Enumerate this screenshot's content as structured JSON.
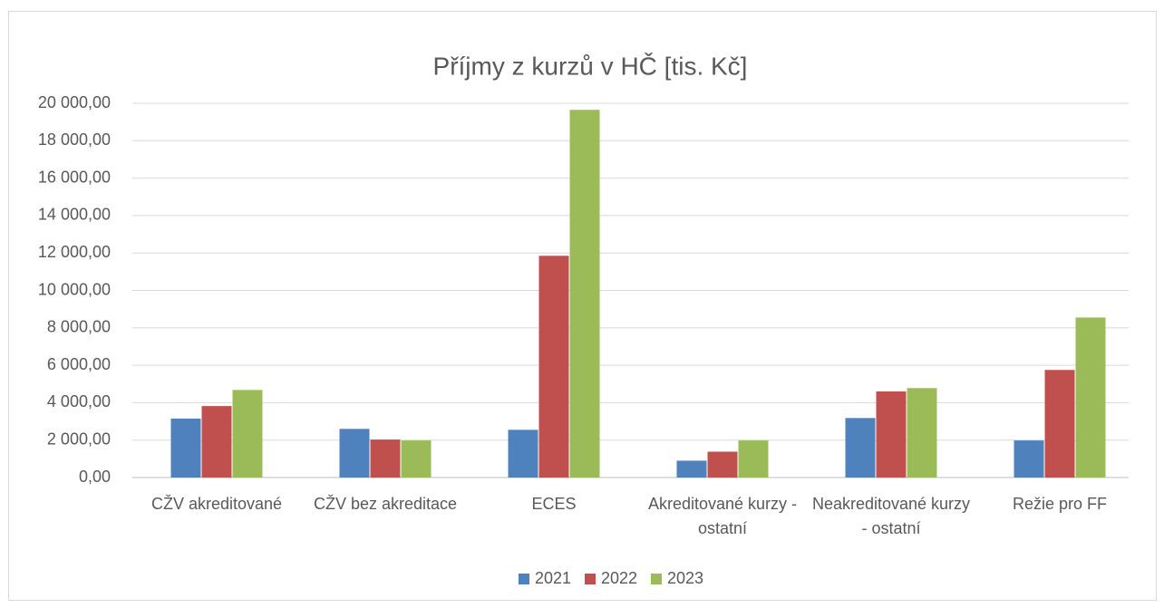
{
  "chart_data": {
    "type": "bar",
    "title": "Příjmy z kurzů v HČ [tis. Kč]",
    "categories": [
      "CŽV akreditované",
      "CŽV bez akreditace",
      "ECES",
      "Akreditované kurzy - ostatní",
      "Neakreditované kurzy - ostatní",
      "Režie pro FF"
    ],
    "series": [
      {
        "name": "2021",
        "color": "#4f81bd",
        "values": [
          3150,
          2600,
          2550,
          900,
          3180,
          1980
        ]
      },
      {
        "name": "2022",
        "color": "#c0504d",
        "values": [
          3820,
          2030,
          11850,
          1380,
          4600,
          5750
        ]
      },
      {
        "name": "2023",
        "color": "#9bbb59",
        "values": [
          4680,
          1980,
          19650,
          1980,
          4780,
          8550
        ]
      }
    ],
    "ylim": [
      0,
      20000
    ],
    "yticks": [
      {
        "value": 0,
        "label": "0,00"
      },
      {
        "value": 2000,
        "label": "2 000,00"
      },
      {
        "value": 4000,
        "label": "4 000,00"
      },
      {
        "value": 6000,
        "label": "6 000,00"
      },
      {
        "value": 8000,
        "label": "8 000,00"
      },
      {
        "value": 10000,
        "label": "10 000,00"
      },
      {
        "value": 12000,
        "label": "12 000,00"
      },
      {
        "value": 14000,
        "label": "14 000,00"
      },
      {
        "value": 16000,
        "label": "16 000,00"
      },
      {
        "value": 18000,
        "label": "18 000,00"
      },
      {
        "value": 20000,
        "label": "20 000,00"
      }
    ],
    "grid": true,
    "legend": "bottom"
  }
}
